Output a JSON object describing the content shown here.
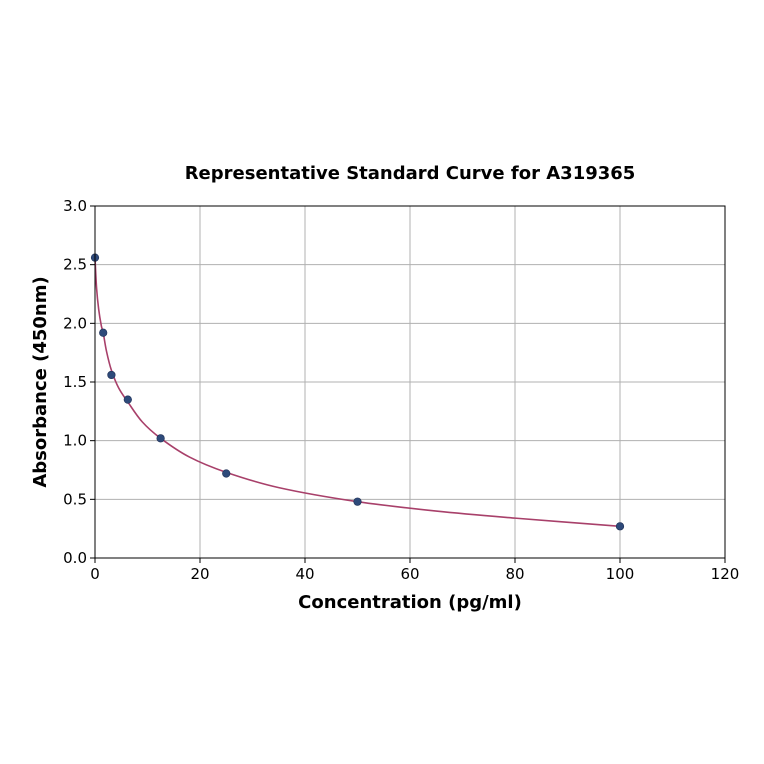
{
  "chart_data": {
    "type": "scatter",
    "title": "Representative Standard Curve for A319365",
    "xlabel": "Concentration (pg/ml)",
    "ylabel": "Absorbance (450nm)",
    "xlim": [
      0,
      120
    ],
    "ylim": [
      0,
      3.0
    ],
    "xticks": [
      0,
      20,
      40,
      60,
      80,
      100,
      120
    ],
    "yticks": [
      0.0,
      0.5,
      1.0,
      1.5,
      2.0,
      2.5,
      3.0
    ],
    "xtick_labels": [
      "0",
      "20",
      "40",
      "60",
      "80",
      "100",
      "120"
    ],
    "ytick_labels": [
      "0.0",
      "0.5",
      "1.0",
      "1.5",
      "2.0",
      "2.5",
      "3.0"
    ],
    "grid": true,
    "series": [
      {
        "kind": "points",
        "x": [
          0,
          1.5625,
          3.125,
          6.25,
          12.5,
          25,
          50,
          100
        ],
        "y": [
          2.56,
          1.92,
          1.56,
          1.35,
          1.02,
          0.72,
          0.48,
          0.27
        ],
        "color": "#2e4a7a"
      },
      {
        "kind": "fit-curve",
        "x": [
          0,
          0.3,
          0.7,
          1.2,
          1.5625,
          2.2,
          3.125,
          4.5,
          6.25,
          9,
          12.5,
          18,
          25,
          35,
          50,
          65,
          80,
          100
        ],
        "y": [
          2.56,
          2.3,
          2.12,
          1.98,
          1.92,
          1.76,
          1.6,
          1.45,
          1.33,
          1.16,
          1.02,
          0.86,
          0.73,
          0.6,
          0.48,
          0.4,
          0.34,
          0.27
        ],
        "color": "#a8406a"
      }
    ]
  }
}
